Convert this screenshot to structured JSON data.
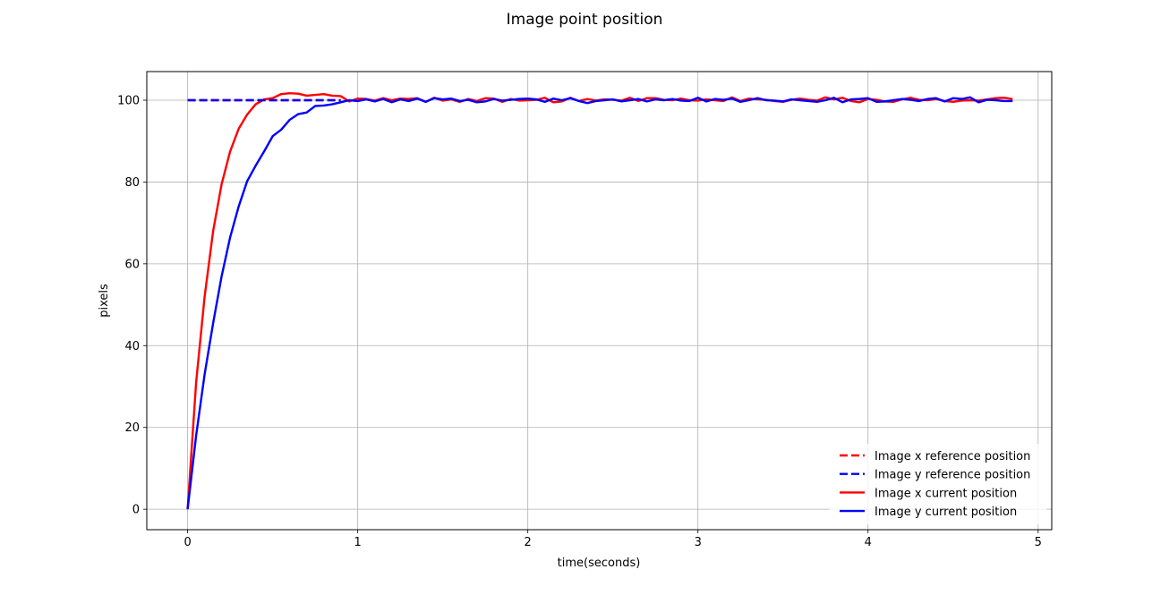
{
  "chart_data": {
    "type": "line",
    "title": "Image point position",
    "xlabel": "time(seconds)",
    "ylabel": "pixels",
    "xlim": [
      -0.24,
      5.08
    ],
    "ylim": [
      -5,
      107
    ],
    "xticks": [
      0,
      1,
      2,
      3,
      4,
      5
    ],
    "yticks": [
      0,
      20,
      40,
      60,
      80,
      100
    ],
    "grid": true,
    "legend_position": "lower-right",
    "x": [
      0,
      0.05,
      0.1,
      0.15,
      0.2,
      0.25,
      0.3,
      0.35,
      0.4,
      0.45,
      0.5,
      0.55,
      0.6,
      0.65,
      0.7,
      0.75,
      0.8,
      0.85,
      0.9,
      0.95,
      1.0,
      1.05,
      1.1,
      1.15,
      1.2,
      1.25,
      1.3,
      1.35,
      1.4,
      1.45,
      1.5,
      1.55,
      1.6,
      1.65,
      1.7,
      1.75,
      1.8,
      1.85,
      1.9,
      1.95,
      2.0,
      2.05,
      2.1,
      2.15,
      2.2,
      2.25,
      2.3,
      2.35,
      2.4,
      2.45,
      2.5,
      2.55,
      2.6,
      2.65,
      2.7,
      2.75,
      2.8,
      2.85,
      2.9,
      2.95,
      3.0,
      3.05,
      3.1,
      3.15,
      3.2,
      3.25,
      3.3,
      3.35,
      3.4,
      3.45,
      3.5,
      3.55,
      3.6,
      3.65,
      3.7,
      3.75,
      3.8,
      3.85,
      3.9,
      3.95,
      4.0,
      4.05,
      4.1,
      4.15,
      4.2,
      4.25,
      4.3,
      4.35,
      4.4,
      4.45,
      4.5,
      4.55,
      4.6,
      4.65,
      4.7,
      4.75,
      4.8,
      4.85
    ],
    "series": [
      {
        "name": "Image x reference position",
        "color": "#ff0000",
        "style": "dashed",
        "x": [
          0,
          0.9
        ],
        "values": [
          100,
          100
        ]
      },
      {
        "name": "Image y reference position",
        "color": "#0000ff",
        "style": "dashed",
        "x": [
          0,
          0.9
        ],
        "values": [
          100,
          100
        ]
      },
      {
        "name": "Image x current position",
        "color": "#ff0000",
        "style": "solid",
        "values": [
          0,
          31,
          52,
          68,
          79.5,
          87.5,
          93,
          96.5,
          99,
          100.2,
          100.5,
          101.5,
          101.7,
          101.6,
          101.1,
          101.3,
          101.5,
          101.1,
          101.0,
          99.7,
          100.4,
          100.3,
          99.9,
          100.5,
          100.0,
          100.4,
          100.3,
          100.5,
          99.6,
          100.6,
          99.9,
          100.2,
          99.6,
          100.3,
          99.8,
          100.5,
          100.4,
          99.6,
          100.3,
          99.9,
          100.0,
          100.1,
          100.6,
          99.5,
          99.7,
          100.6,
          99.8,
          100.3,
          99.9,
          100.2,
          100.1,
          99.9,
          100.6,
          99.8,
          100.5,
          100.5,
          100.1,
          100.0,
          100.4,
          100.0,
          99.9,
          100.2,
          100.0,
          99.8,
          100.7,
          99.8,
          100.4,
          100.2,
          100.1,
          99.8,
          99.6,
          100.1,
          100.4,
          100.1,
          99.9,
          100.7,
          100.2,
          100.6,
          99.8,
          99.5,
          100.3,
          100.1,
          99.7,
          99.6,
          100.2,
          100.6,
          100.1,
          100.0,
          100.3,
          99.8,
          99.6,
          99.9,
          100.0,
          99.9,
          100.2,
          100.5,
          100.6,
          100.3
        ]
      },
      {
        "name": "Image y current position",
        "color": "#0000ff",
        "style": "solid",
        "values": [
          0,
          18,
          33,
          45.5,
          57,
          66.5,
          74,
          80.2,
          84,
          87.5,
          91.2,
          92.8,
          95.2,
          96.6,
          97.0,
          98.6,
          98.7,
          99.0,
          99.5,
          100.0,
          99.8,
          100.2,
          99.7,
          100.3,
          99.5,
          100.2,
          99.8,
          100.4,
          99.6,
          100.5,
          100.2,
          100.4,
          99.8,
          100.1,
          99.5,
          99.7,
          100.3,
          99.9,
          100.1,
          100.3,
          100.4,
          100.2,
          99.6,
          100.4,
          100.0,
          100.5,
          99.8,
          99.3,
          99.8,
          100.0,
          100.2,
          99.7,
          100.0,
          100.3,
          99.7,
          100.2,
          100.0,
          100.3,
          99.9,
          99.8,
          100.6,
          99.7,
          100.3,
          100.1,
          100.4,
          99.6,
          100.0,
          100.5,
          100.0,
          99.9,
          99.7,
          100.2,
          100.0,
          99.8,
          99.6,
          100.0,
          100.6,
          99.5,
          100.2,
          100.3,
          100.5,
          99.6,
          99.7,
          100.0,
          100.3,
          100.1,
          99.8,
          100.3,
          100.5,
          99.7,
          100.5,
          100.3,
          100.7,
          99.5,
          100.1,
          100.0,
          99.8,
          99.8
        ]
      }
    ]
  }
}
